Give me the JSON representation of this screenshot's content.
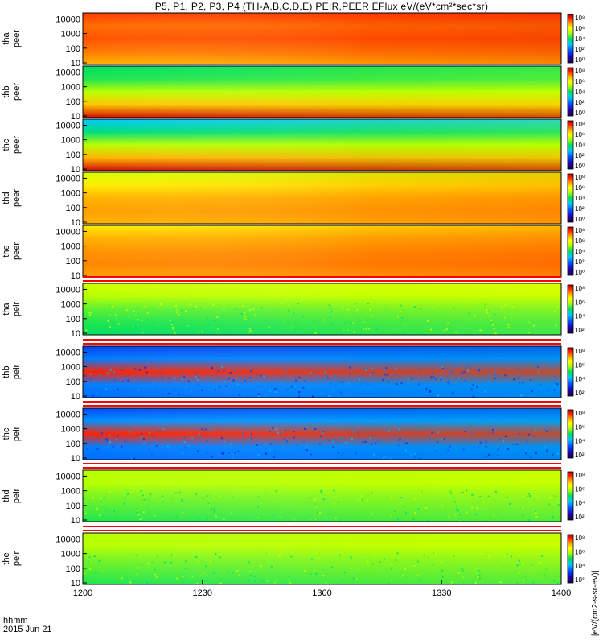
{
  "title": "P5, P1, P2, P3, P4 (TH-A,B,C,D,E) PEIR,PEER EFlux eV/(eV*cm²*sec*sr)",
  "time_label": "hhmm",
  "date_label": "2015 Jun 21",
  "colorbar_label": "[eV/(cm2-s-sr-eV)]",
  "colors": {
    "accent": "#ff0000",
    "frame": "#000000"
  },
  "chart_data": {
    "type": "heatmap",
    "x_range": [
      "12:00",
      "14:00"
    ],
    "x_ticks": [
      "1200",
      "1230",
      "1300",
      "1330",
      "1400"
    ],
    "y_scale": "log",
    "y_range": [
      10,
      20000
    ],
    "y_ticks": [
      "10",
      "100",
      "1000",
      "10000"
    ],
    "colorbar_ticks_ions": [
      "10⁸",
      "10⁶",
      "10⁴",
      "10²"
    ],
    "colorbar_ticks_electrons": [
      "10⁸",
      "10⁶",
      "10⁴",
      "10²",
      "10⁰"
    ],
    "panels": [
      {
        "probe": "tha",
        "species": "peer",
        "mean_level": 0.83
      },
      {
        "probe": "thb",
        "species": "peer",
        "mean_level": 0.55
      },
      {
        "probe": "thc",
        "species": "peer",
        "mean_level": 0.5
      },
      {
        "probe": "thd",
        "species": "peer",
        "mean_level": 0.78
      },
      {
        "probe": "the",
        "species": "peer",
        "mean_level": 0.8
      },
      {
        "probe": "tha",
        "species": "peir",
        "mean_level": 0.6
      },
      {
        "probe": "thb",
        "species": "peir",
        "mean_level": 0.3
      },
      {
        "probe": "thc",
        "species": "peir",
        "mean_level": 0.3
      },
      {
        "probe": "thd",
        "species": "peir",
        "mean_level": 0.58
      },
      {
        "probe": "the",
        "species": "peir",
        "mean_level": 0.58
      }
    ]
  }
}
